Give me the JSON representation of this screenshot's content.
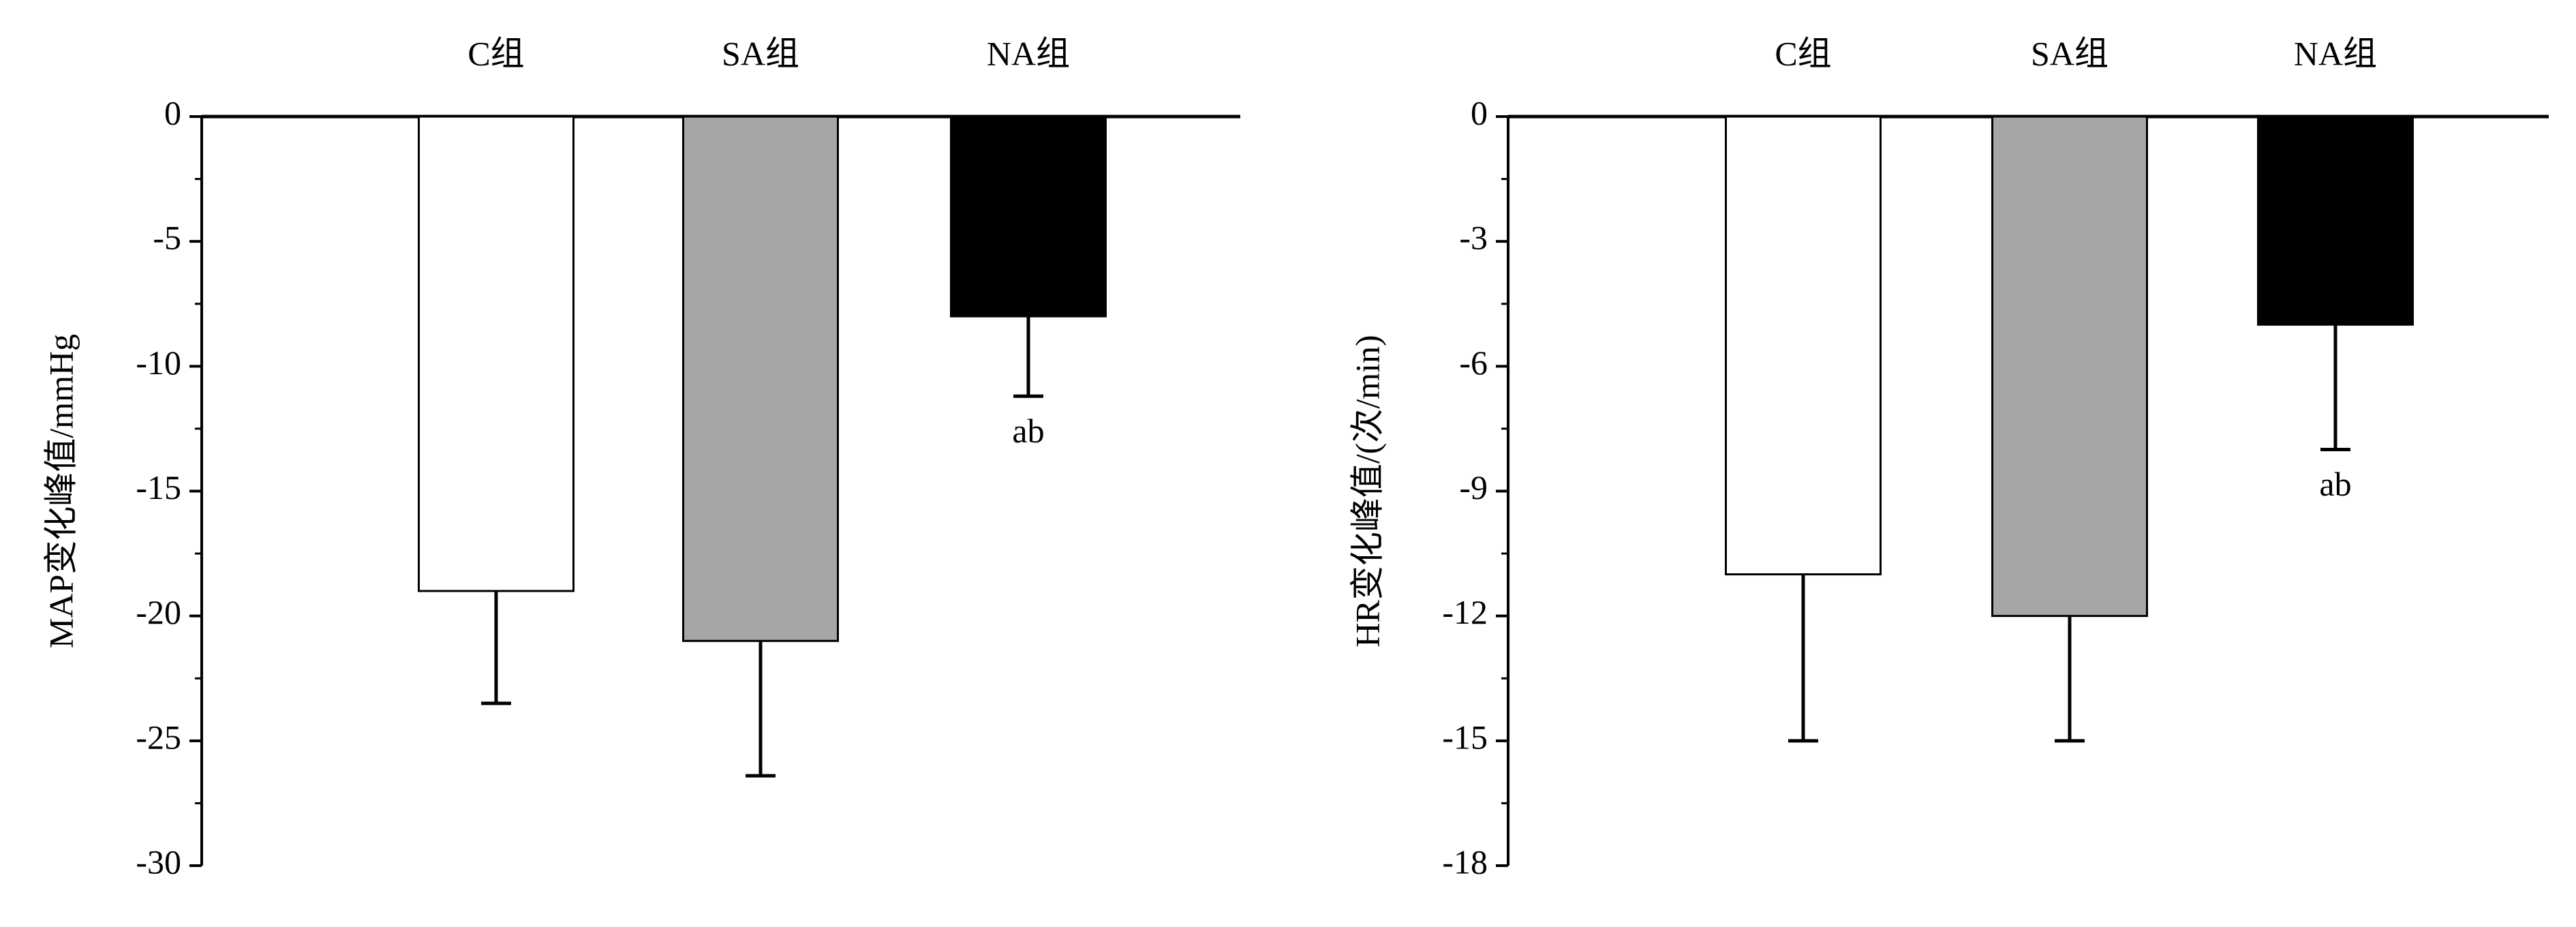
{
  "chart_data": [
    {
      "type": "bar",
      "ylabel": "MAP变化峰值/mmHg",
      "categories": [
        "C组",
        "SA组",
        "NA组"
      ],
      "values": [
        -19,
        -21,
        -8
      ],
      "errors": [
        4.5,
        5.4,
        3.2
      ],
      "colors": [
        "#ffffff",
        "#a6a6a6",
        "#000000"
      ],
      "annotations": [
        {
          "text": "ab",
          "category": "NA组"
        }
      ],
      "ylim": [
        -30,
        0
      ],
      "yticks": [
        0,
        -5,
        -10,
        -15,
        -20,
        -25,
        -30
      ]
    },
    {
      "type": "bar",
      "ylabel": "HR变化峰值/(次/min)",
      "categories": [
        "C组",
        "SA组",
        "NA组"
      ],
      "values": [
        -11,
        -12,
        -5
      ],
      "errors": [
        4,
        3,
        3
      ],
      "colors": [
        "#ffffff",
        "#a6a6a6",
        "#000000"
      ],
      "annotations": [
        {
          "text": "ab",
          "category": "NA组"
        }
      ],
      "ylim": [
        -18,
        0
      ],
      "yticks": [
        0,
        -3,
        -6,
        -9,
        -12,
        -15,
        -18
      ]
    }
  ]
}
